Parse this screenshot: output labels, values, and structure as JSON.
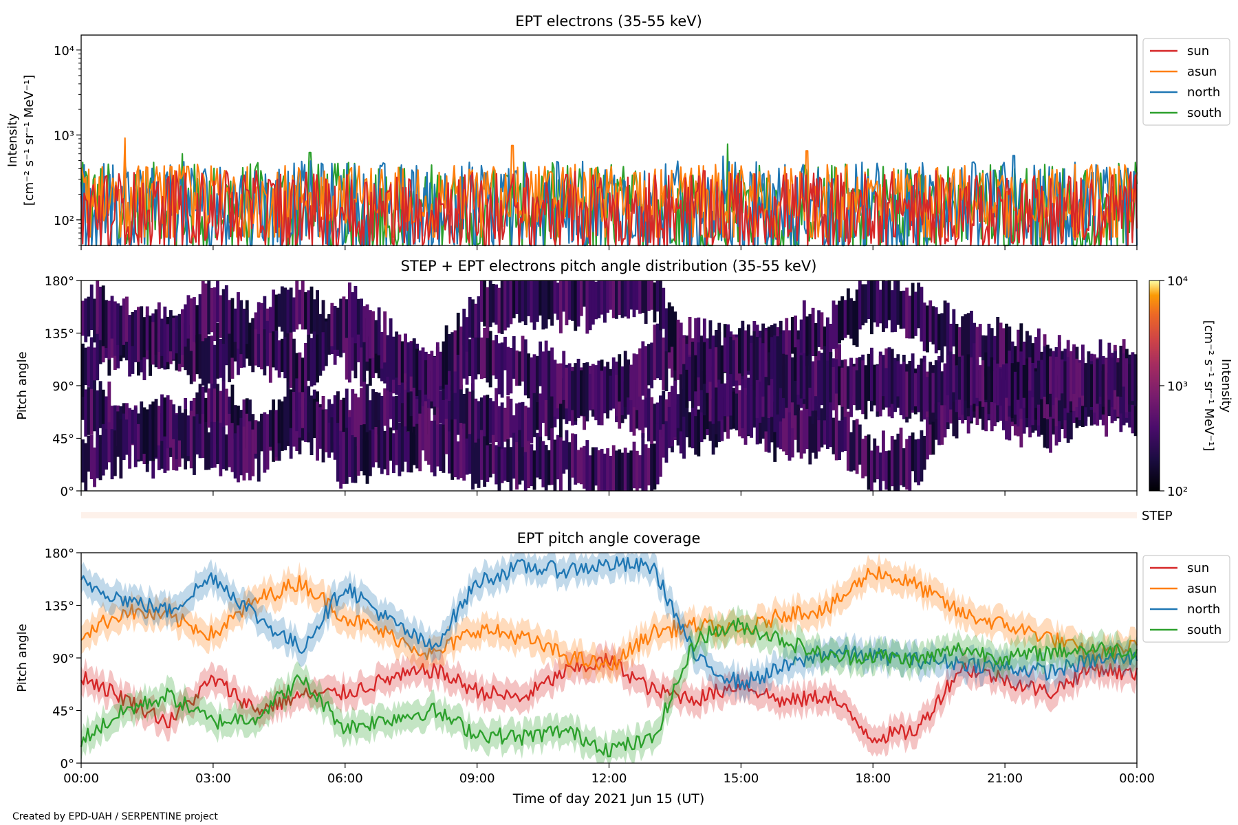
{
  "footer": "Created by EPD-UAH / SERPENTINE project",
  "xlabel": "Time of day 2021 Jun 15 (UT)",
  "x_ticks": [
    "00:00",
    "03:00",
    "06:00",
    "09:00",
    "12:00",
    "15:00",
    "18:00",
    "21:00",
    "00:00"
  ],
  "colors": {
    "sun": "#d62728",
    "asun": "#ff7f0e",
    "north": "#1f77b4",
    "south": "#2ca02c"
  },
  "chart_data": [
    {
      "type": "line",
      "title": "EPT electrons (35-55 keV)",
      "ylabel_line1": "Intensity",
      "ylabel_line2": "[cm⁻² s⁻¹ sr⁻¹ MeV⁻¹]",
      "y_scale": "log",
      "ylim": [
        50,
        15000
      ],
      "y_ticks": [
        {
          "value": 100,
          "label": "10²"
        },
        {
          "value": 1000,
          "label": "10³"
        },
        {
          "value": 10000,
          "label": "10⁴"
        }
      ],
      "x": [
        "00:00",
        "24:00"
      ],
      "legend": {
        "placement": "outside-right-top",
        "entries": [
          "sun",
          "asun",
          "north",
          "south"
        ]
      },
      "series": [
        {
          "name": "sun",
          "color": "#d62728",
          "typical_range": [
            50,
            380
          ],
          "peaks": []
        },
        {
          "name": "asun",
          "color": "#ff7f0e",
          "typical_range": [
            90,
            450
          ],
          "peaks": [
            {
              "t": 1.0,
              "v": 920
            },
            {
              "t": 9.8,
              "v": 750
            },
            {
              "t": 16.5,
              "v": 650
            }
          ]
        },
        {
          "name": "north",
          "color": "#1f77b4",
          "typical_range": [
            50,
            500
          ],
          "peaks": [
            {
              "t": 14.6,
              "v": 560
            },
            {
              "t": 21.2,
              "v": 570
            }
          ]
        },
        {
          "name": "south",
          "color": "#2ca02c",
          "typical_range": [
            50,
            480
          ],
          "peaks": [
            {
              "t": 2.3,
              "v": 600
            },
            {
              "t": 5.2,
              "v": 620
            },
            {
              "t": 14.7,
              "v": 780
            }
          ]
        }
      ]
    },
    {
      "type": "heatmap",
      "title": "STEP + EPT electrons pitch angle distribution (35-55 keV)",
      "ylabel": "Pitch angle",
      "y_ticks": [
        "0°",
        "45°",
        "90°",
        "135°",
        "180°"
      ],
      "ylim": [
        0,
        180
      ],
      "colorbar": {
        "label_line1": "Intensity",
        "label_line2": "[cm⁻² s⁻¹ sr⁻¹ MeV⁻¹]",
        "scale": "log",
        "range": [
          100,
          10000
        ],
        "ticks": [
          {
            "value": 100,
            "label": "10²"
          },
          {
            "value": 1000,
            "label": "10³"
          },
          {
            "value": 10000,
            "label": "10⁴"
          }
        ],
        "colormap": "inferno"
      },
      "typical_intensity": 200,
      "step_label": "STEP"
    },
    {
      "type": "line",
      "title": "EPT pitch angle coverage",
      "ylabel": "Pitch angle",
      "y_ticks": [
        "0°",
        "45°",
        "90°",
        "135°",
        "180°"
      ],
      "ylim": [
        0,
        180
      ],
      "legend": {
        "placement": "outside-right-top",
        "entries": [
          "sun",
          "asun",
          "north",
          "south"
        ]
      },
      "band_halfwidth_deg": 12,
      "series": [
        {
          "name": "sun",
          "color": "#d62728",
          "t": [
            0,
            1,
            2,
            3,
            4,
            5,
            6,
            7,
            8,
            9,
            10,
            11,
            12,
            13,
            14,
            15,
            16,
            17,
            18,
            19,
            20,
            21,
            22,
            23,
            24
          ],
          "v": [
            75,
            55,
            35,
            72,
            45,
            58,
            60,
            72,
            80,
            62,
            55,
            78,
            88,
            62,
            55,
            68,
            52,
            58,
            22,
            28,
            82,
            72,
            60,
            82,
            75
          ]
        },
        {
          "name": "asun",
          "color": "#ff7f0e",
          "t": [
            0,
            1,
            2,
            3,
            4,
            5,
            6,
            7,
            8,
            9,
            10,
            11,
            12,
            13,
            14,
            15,
            16,
            17,
            18,
            19,
            20,
            21,
            22,
            23,
            24
          ],
          "v": [
            110,
            130,
            125,
            110,
            140,
            155,
            125,
            110,
            92,
            115,
            108,
            92,
            82,
            112,
            118,
            112,
            128,
            132,
            165,
            152,
            128,
            118,
            108,
            92,
            100
          ]
        },
        {
          "name": "north",
          "color": "#1f77b4",
          "t": [
            0,
            1,
            2,
            3,
            4,
            5,
            6,
            7,
            8,
            9,
            10,
            11,
            12,
            13,
            14,
            15,
            16,
            17,
            18,
            19,
            20,
            21,
            22,
            23,
            24
          ],
          "v": [
            155,
            140,
            130,
            160,
            125,
            98,
            152,
            122,
            98,
            155,
            168,
            165,
            170,
            168,
            88,
            68,
            82,
            95,
            92,
            88,
            86,
            82,
            78,
            88,
            90
          ]
        },
        {
          "name": "south",
          "color": "#2ca02c",
          "t": [
            0,
            1,
            2,
            3,
            4,
            5,
            6,
            7,
            8,
            9,
            10,
            11,
            12,
            13,
            14,
            15,
            16,
            17,
            18,
            19,
            20,
            21,
            22,
            23,
            24
          ],
          "v": [
            20,
            45,
            58,
            35,
            40,
            72,
            30,
            38,
            45,
            25,
            22,
            28,
            12,
            20,
            108,
            118,
            105,
            90,
            92,
            88,
            98,
            90,
            95,
            98,
            96
          ]
        }
      ]
    }
  ]
}
